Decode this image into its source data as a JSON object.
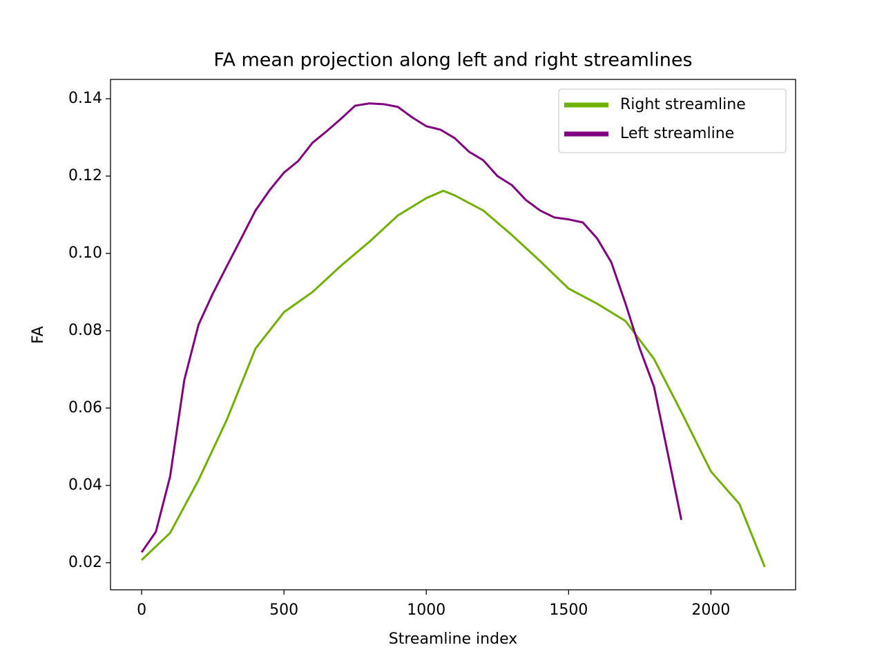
{
  "chart_data": {
    "type": "line",
    "title": "FA mean projection along left and right streamlines",
    "x_label": "Streamline index",
    "y_label": "FA",
    "xlim": [
      -109.4,
      2297.4
    ],
    "ylim": [
      0.013,
      0.145
    ],
    "xticks": [
      0,
      500,
      1000,
      1500,
      2000
    ],
    "yticks": [
      0.02,
      0.04,
      0.06,
      0.08,
      {
        "value": 0.1,
        "label": "0.10"
      },
      0.12,
      0.14
    ],
    "legend": "upper right",
    "series": [
      {
        "name": "Right streamline",
        "color": "#70b000",
        "x": [
          0,
          100,
          200,
          300,
          400,
          500,
          600,
          700,
          800,
          900,
          1000,
          1060,
          1100,
          1200,
          1300,
          1400,
          1500,
          1600,
          1700,
          1800,
          1900,
          2000,
          2100,
          2189
        ],
        "values": [
          0.0207,
          0.0277,
          0.0414,
          0.0571,
          0.0754,
          0.0848,
          0.09,
          0.0968,
          0.103,
          0.1098,
          0.1143,
          0.1162,
          0.115,
          0.1111,
          0.1048,
          0.098,
          0.0909,
          0.087,
          0.0825,
          0.0727,
          0.0584,
          0.0436,
          0.0352,
          0.0189
        ]
      },
      {
        "name": "Left streamline",
        "color": "#800080",
        "x": [
          0,
          50,
          100,
          150,
          200,
          250,
          300,
          350,
          400,
          450,
          500,
          550,
          600,
          650,
          700,
          750,
          800,
          850,
          900,
          950,
          1000,
          1050,
          1100,
          1150,
          1200,
          1250,
          1300,
          1350,
          1400,
          1450,
          1500,
          1550,
          1600,
          1650,
          1700,
          1750,
          1800,
          1850,
          1896
        ],
        "values": [
          0.0227,
          0.028,
          0.0423,
          0.0673,
          0.0816,
          0.0896,
          0.0968,
          0.1039,
          0.1111,
          0.1164,
          0.1209,
          0.1239,
          0.1286,
          0.1316,
          0.1348,
          0.1382,
          0.1388,
          0.1386,
          0.1379,
          0.1352,
          0.1329,
          0.132,
          0.1298,
          0.1263,
          0.1241,
          0.12,
          0.1177,
          0.1138,
          0.1111,
          0.1093,
          0.1088,
          0.108,
          0.1039,
          0.0977,
          0.087,
          0.0754,
          0.0655,
          0.0477,
          0.0311
        ]
      }
    ]
  }
}
